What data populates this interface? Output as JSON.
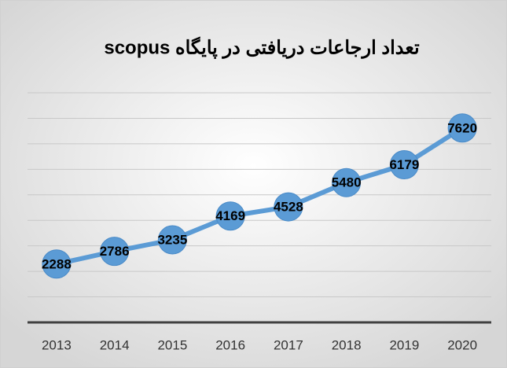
{
  "chart_data": {
    "type": "line",
    "title": "تعداد ارجاعات دریافتی در پایگاه scopus",
    "categories": [
      "2013",
      "2014",
      "2015",
      "2016",
      "2017",
      "2018",
      "2019",
      "2020"
    ],
    "values": [
      2288,
      2786,
      3235,
      4169,
      4528,
      5480,
      6179,
      7620
    ],
    "color": "#5b9bd5",
    "ylim": [
      0,
      9000
    ],
    "yticks": [
      0,
      1000,
      2000,
      3000,
      4000,
      5000,
      6000,
      7000,
      8000,
      9000
    ],
    "grid": true
  }
}
